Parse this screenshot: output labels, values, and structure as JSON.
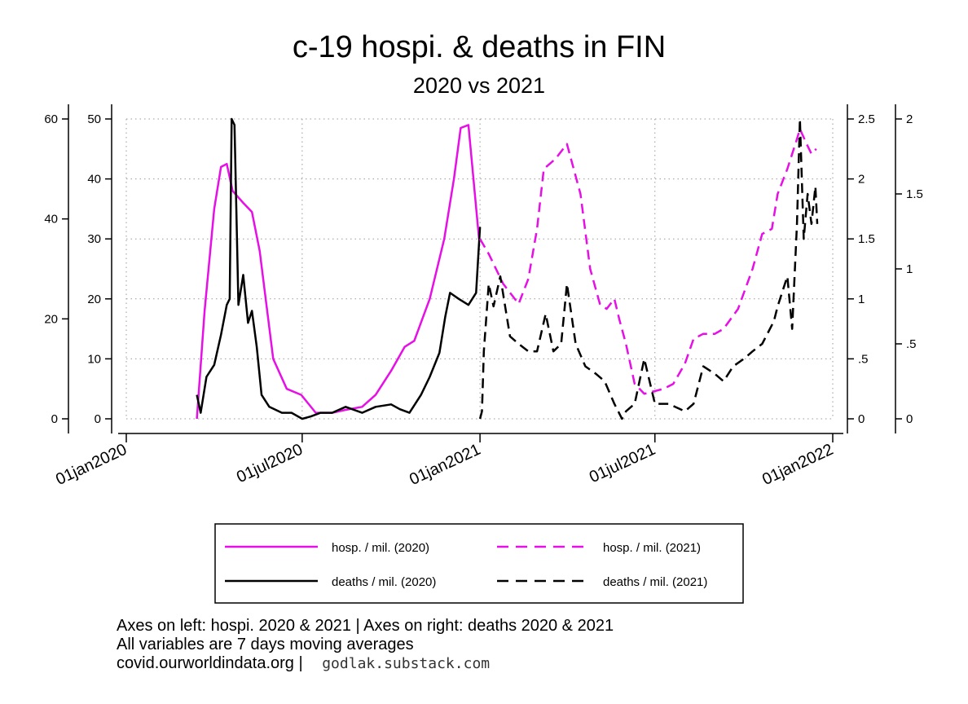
{
  "chart_data": {
    "type": "line",
    "title": "c-19 hospi. & deaths in FIN",
    "subtitle": "2020 vs 2021",
    "x_axis": {
      "ticks": [
        "01jan2020",
        "01jul2020",
        "01jan2021",
        "01jul2021",
        "01jan2022"
      ],
      "range": [
        "2020-01-01",
        "2022-01-01"
      ]
    },
    "axes": {
      "left_outer": {
        "for": "hosp. / mil. (2021)",
        "range": [
          0,
          60
        ],
        "ticks": [
          0,
          20,
          40,
          60
        ],
        "tick_labels": [
          "0",
          "20",
          "40",
          "60"
        ]
      },
      "left_inner": {
        "for": "hosp. / mil. (2020)",
        "range": [
          0,
          50
        ],
        "ticks": [
          0,
          10,
          20,
          30,
          40,
          50
        ],
        "tick_labels": [
          "0",
          "10",
          "20",
          "30",
          "40",
          "50"
        ]
      },
      "right_inner": {
        "for": "deaths / mil. (2020)",
        "range": [
          0,
          2.5
        ],
        "ticks": [
          0,
          0.5,
          1,
          1.5,
          2,
          2.5
        ],
        "tick_labels": [
          "0",
          ".5",
          "1",
          "1.5",
          "2",
          "2.5"
        ]
      },
      "right_outer": {
        "for": "deaths / mil. (2021)",
        "range": [
          0,
          2
        ],
        "ticks": [
          0,
          0.5,
          1,
          1.5,
          2
        ],
        "tick_labels": [
          "0",
          ".5",
          "1",
          "1.5",
          "2"
        ]
      }
    },
    "grid": true,
    "legend": "bottom",
    "series": [
      {
        "name": "hosp. / mil. (2020)",
        "axis": "left_inner",
        "color": "#e60fe6",
        "dash": "solid",
        "x": [
          "2020-03-14",
          "2020-03-22",
          "2020-04-01",
          "2020-04-08",
          "2020-04-14",
          "2020-04-20",
          "2020-05-01",
          "2020-05-10",
          "2020-05-18",
          "2020-06-01",
          "2020-06-15",
          "2020-06-30",
          "2020-07-15",
          "2020-08-01",
          "2020-08-15",
          "2020-09-01",
          "2020-09-15",
          "2020-10-01",
          "2020-10-15",
          "2020-10-25",
          "2020-11-10",
          "2020-11-25",
          "2020-12-05",
          "2020-12-12",
          "2020-12-20",
          "2020-12-31"
        ],
        "y": [
          0,
          18,
          35,
          42,
          42.5,
          38,
          36,
          34.5,
          28,
          10,
          5,
          4,
          1,
          1,
          1.5,
          2,
          4,
          8,
          12,
          13,
          20,
          30,
          40,
          48.5,
          49,
          30
        ]
      },
      {
        "name": "deaths / mil. (2020)",
        "axis": "right_inner",
        "color": "#000000",
        "dash": "solid",
        "x": [
          "2020-03-14",
          "2020-03-18",
          "2020-03-24",
          "2020-04-01",
          "2020-04-08",
          "2020-04-14",
          "2020-04-17",
          "2020-04-19",
          "2020-04-22",
          "2020-04-26",
          "2020-05-01",
          "2020-05-06",
          "2020-05-10",
          "2020-05-15",
          "2020-05-20",
          "2020-05-28",
          "2020-06-10",
          "2020-06-20",
          "2020-07-01",
          "2020-07-10",
          "2020-07-20",
          "2020-08-01",
          "2020-08-15",
          "2020-09-01",
          "2020-09-15",
          "2020-10-01",
          "2020-10-10",
          "2020-10-20",
          "2020-11-01",
          "2020-11-10",
          "2020-11-20",
          "2020-11-26",
          "2020-12-01",
          "2020-12-10",
          "2020-12-20",
          "2020-12-28",
          "2021-01-01"
        ],
        "y": [
          0.2,
          0.05,
          0.35,
          0.45,
          0.7,
          0.95,
          1.0,
          2.5,
          2.45,
          0.95,
          1.2,
          0.8,
          0.9,
          0.6,
          0.2,
          0.1,
          0.05,
          0.05,
          0.0,
          0.02,
          0.05,
          0.05,
          0.1,
          0.05,
          0.1,
          0.12,
          0.08,
          0.05,
          0.2,
          0.35,
          0.55,
          0.85,
          1.05,
          1.0,
          0.95,
          1.05,
          1.6
        ]
      },
      {
        "name": "hosp. / mil. (2021)",
        "axis": "left_outer",
        "color": "#e60fe6",
        "dash": "dashed",
        "x": [
          "2021-01-01",
          "2021-01-10",
          "2021-01-25",
          "2021-02-10",
          "2021-02-20",
          "2021-03-01",
          "2021-03-08",
          "2021-03-20",
          "2021-04-01",
          "2021-04-15",
          "2021-04-25",
          "2021-05-05",
          "2021-05-12",
          "2021-05-20",
          "2021-05-25",
          "2021-06-01",
          "2021-06-10",
          "2021-06-20",
          "2021-07-10",
          "2021-07-20",
          "2021-08-01",
          "2021-08-10",
          "2021-08-20",
          "2021-09-01",
          "2021-09-10",
          "2021-09-25",
          "2021-10-10",
          "2021-10-20",
          "2021-10-30",
          "2021-11-05",
          "2021-11-15",
          "2021-11-25",
          "2021-11-28",
          "2021-12-05",
          "2021-12-10",
          "2021-12-15"
        ],
        "y": [
          36,
          33,
          27,
          23,
          28,
          38,
          50,
          52,
          55,
          45,
          30,
          23,
          22,
          24,
          20,
          15,
          7,
          5,
          6,
          7,
          11,
          16,
          17,
          17,
          18,
          22,
          30,
          37,
          38,
          45,
          50,
          56,
          58,
          55,
          53,
          54
        ]
      },
      {
        "name": "deaths / mil. (2021)",
        "axis": "right_outer",
        "color": "#000000",
        "dash": "dashed",
        "x": [
          "2021-01-01",
          "2021-01-03",
          "2021-01-05",
          "2021-01-10",
          "2021-01-15",
          "2021-01-22",
          "2021-02-01",
          "2021-02-10",
          "2021-02-20",
          "2021-03-01",
          "2021-03-10",
          "2021-03-18",
          "2021-03-26",
          "2021-04-01",
          "2021-04-10",
          "2021-04-20",
          "2021-05-01",
          "2021-05-10",
          "2021-05-20",
          "2021-05-28",
          "2021-06-01",
          "2021-06-10",
          "2021-06-20",
          "2021-07-01",
          "2021-07-15",
          "2021-08-01",
          "2021-08-10",
          "2021-08-20",
          "2021-09-01",
          "2021-09-10",
          "2021-09-20",
          "2021-10-01",
          "2021-10-10",
          "2021-10-20",
          "2021-11-01",
          "2021-11-05",
          "2021-11-10",
          "2021-11-15",
          "2021-11-20",
          "2021-11-25",
          "2021-11-28",
          "2021-12-02",
          "2021-12-06",
          "2021-12-10",
          "2021-12-14",
          "2021-12-16"
        ],
        "y": [
          0,
          0.05,
          0.45,
          0.9,
          0.75,
          0.95,
          0.55,
          0.5,
          0.45,
          0.45,
          0.7,
          0.45,
          0.5,
          0.9,
          0.5,
          0.35,
          0.3,
          0.25,
          0.1,
          0.0,
          0.05,
          0.1,
          0.4,
          0.1,
          0.1,
          0.05,
          0.1,
          0.35,
          0.3,
          0.25,
          0.35,
          0.4,
          0.45,
          0.5,
          0.65,
          0.75,
          0.85,
          0.95,
          0.6,
          1.3,
          2.0,
          1.2,
          1.5,
          1.3,
          1.55,
          1.3
        ]
      }
    ],
    "notes": [
      "Axes on left: hospi. 2020 & 2021 | Axes on right: deaths 2020 & 2021",
      "All variables are 7 days moving averages",
      "covid.ourworldindata.org |"
    ],
    "watermark": "godlak.substack.com"
  }
}
